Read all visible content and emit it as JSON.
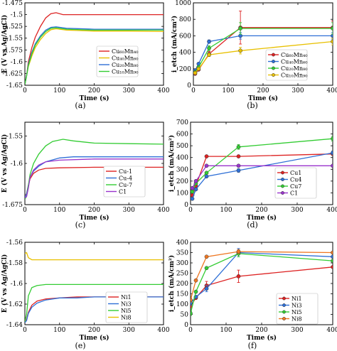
{
  "captions": [
    "(a)",
    "(b)",
    "(c)",
    "(d)",
    "(e)",
    "(f)"
  ],
  "chart_data": [
    {
      "id": "a",
      "type": "line",
      "xlabel": "Time (s)",
      "ylabel": "E (V vs Ag/AgCl)",
      "xlim": [
        0,
        400
      ],
      "ylim": [
        -1.65,
        -1.475
      ],
      "xticks": [
        0,
        100,
        200,
        300,
        400
      ],
      "yticks": [
        -1.65,
        -1.625,
        -1.6,
        -1.575,
        -1.55,
        -1.525,
        -1.5,
        -1.475
      ],
      "ytick_labels": [
        "-1.65",
        "-1.625",
        "-1.6",
        "-1.575",
        "-1.55",
        "-1.525",
        "-1.5",
        "-1.475"
      ],
      "legend_position": "lower-right",
      "series": [
        {
          "name": "Cu₆₀Mn₄₀",
          "color": "#dd2222",
          "x": [
            0,
            5,
            10,
            20,
            30,
            45,
            60,
            75,
            90,
            110,
            200,
            300,
            400
          ],
          "y": [
            -1.648,
            -1.63,
            -1.6,
            -1.57,
            -1.548,
            -1.525,
            -1.507,
            -1.498,
            -1.496,
            -1.5,
            -1.5,
            -1.5,
            -1.5
          ]
        },
        {
          "name": "Cu₄₀Mn₆₀",
          "color": "#e8c000",
          "x": [
            0,
            5,
            10,
            20,
            30,
            45,
            60,
            75,
            90,
            120,
            200,
            300,
            400
          ],
          "y": [
            -1.648,
            -1.63,
            -1.61,
            -1.588,
            -1.57,
            -1.553,
            -1.54,
            -1.532,
            -1.53,
            -1.533,
            -1.535,
            -1.535,
            -1.536
          ]
        },
        {
          "name": "Cu₂₀Mn₈₀",
          "color": "#2e6fd6",
          "x": [
            0,
            5,
            10,
            20,
            30,
            45,
            60,
            75,
            90,
            120,
            200,
            300,
            400
          ],
          "y": [
            -1.648,
            -1.63,
            -1.605,
            -1.58,
            -1.562,
            -1.545,
            -1.533,
            -1.527,
            -1.526,
            -1.529,
            -1.531,
            -1.531,
            -1.531
          ]
        },
        {
          "name": "Cu₁₀Mn₉₀",
          "color": "#33cc33",
          "x": [
            0,
            5,
            10,
            20,
            30,
            45,
            60,
            75,
            90,
            120,
            200,
            300,
            400
          ],
          "y": [
            -1.648,
            -1.63,
            -1.608,
            -1.583,
            -1.565,
            -1.548,
            -1.536,
            -1.529,
            -1.528,
            -1.531,
            -1.533,
            -1.533,
            -1.533
          ]
        }
      ]
    },
    {
      "id": "b",
      "type": "line",
      "xlabel": "Time (s)",
      "ylabel": "i_etch (mA/cm²)",
      "xlim": [
        0,
        400
      ],
      "ylim": [
        0,
        1000
      ],
      "xticks": [
        0,
        100,
        200,
        300,
        400
      ],
      "yticks": [
        0,
        200,
        400,
        600,
        800,
        1000
      ],
      "legend_position": "lower-right",
      "series": [
        {
          "name": "Cu₆₀Mn₄₀",
          "color": "#dd2222",
          "x": [
            5,
            15,
            45,
            135,
            400
          ],
          "y": [
            140,
            190,
            380,
            700,
            700
          ],
          "err": [
            0,
            0,
            30,
            200,
            80
          ]
        },
        {
          "name": "Cu₄₀Mn₆₀",
          "color": "#2e6fd6",
          "x": [
            5,
            15,
            45,
            135,
            400
          ],
          "y": [
            180,
            260,
            530,
            600,
            600
          ],
          "err": [
            0,
            0,
            20,
            40,
            40
          ]
        },
        {
          "name": "Cu₂₀Mn₈₀",
          "color": "#33cc33",
          "x": [
            5,
            15,
            45,
            135,
            400
          ],
          "y": [
            160,
            220,
            450,
            690,
            690
          ],
          "err": [
            0,
            0,
            30,
            70,
            70
          ]
        },
        {
          "name": "Cu₁₀Mn₉₀",
          "color": "#e8c000",
          "x": [
            5,
            15,
            45,
            135,
            400
          ],
          "y": [
            150,
            200,
            370,
            420,
            530
          ],
          "err": [
            0,
            0,
            20,
            40,
            40
          ]
        }
      ]
    },
    {
      "id": "c",
      "type": "line",
      "xlabel": "Time (s)",
      "ylabel": "E (V vs Ag/AgCl)",
      "xlim": [
        0,
        400
      ],
      "ylim": [
        -1.675,
        -1.525
      ],
      "xticks": [
        0,
        100,
        200,
        300,
        400
      ],
      "yticks": [
        -1.675,
        -1.6,
        -1.55
      ],
      "ytick_labels": [
        "-1.675",
        "-1.6",
        "-1.55"
      ],
      "legend_position": "lower-right",
      "series": [
        {
          "name": "Cu-1",
          "color": "#dd2222",
          "x": [
            0,
            5,
            10,
            15,
            25,
            40,
            60,
            100,
            200,
            300,
            400
          ],
          "y": [
            -1.66,
            -1.655,
            -1.64,
            -1.628,
            -1.618,
            -1.612,
            -1.609,
            -1.608,
            -1.607,
            -1.607,
            -1.607
          ]
        },
        {
          "name": "Cu-4",
          "color": "#2e6fd6",
          "x": [
            0,
            5,
            10,
            15,
            25,
            40,
            60,
            100,
            140,
            200,
            300,
            400
          ],
          "y": [
            -1.662,
            -1.655,
            -1.64,
            -1.625,
            -1.614,
            -1.605,
            -1.597,
            -1.59,
            -1.588,
            -1.588,
            -1.588,
            -1.588
          ]
        },
        {
          "name": "Cu-7",
          "color": "#33cc33",
          "x": [
            0,
            5,
            10,
            15,
            25,
            40,
            60,
            80,
            110,
            140,
            200,
            300,
            400
          ],
          "y": [
            -1.665,
            -1.66,
            -1.64,
            -1.62,
            -1.6,
            -1.583,
            -1.568,
            -1.56,
            -1.556,
            -1.559,
            -1.563,
            -1.564,
            -1.565
          ]
        },
        {
          "name": "C1",
          "color": "#9933cc",
          "x": [
            0,
            5,
            10,
            15,
            25,
            40,
            60,
            100,
            200,
            300,
            400
          ],
          "y": [
            -1.663,
            -1.66,
            -1.645,
            -1.625,
            -1.612,
            -1.603,
            -1.597,
            -1.594,
            -1.592,
            -1.592,
            -1.592
          ]
        }
      ]
    },
    {
      "id": "d",
      "type": "line",
      "xlabel": "Time (s)",
      "ylabel": "i_etch (mA/cm²)",
      "xlim": [
        0,
        400
      ],
      "ylim": [
        0,
        700
      ],
      "xticks": [
        0,
        100,
        200,
        300,
        400
      ],
      "yticks": [
        0,
        100,
        200,
        300,
        400,
        500,
        600,
        700
      ],
      "legend_position": "lower-right",
      "series": [
        {
          "name": "Cu1",
          "color": "#dd2222",
          "x": [
            5,
            15,
            45,
            135,
            400
          ],
          "y": [
            80,
            160,
            410,
            410,
            430
          ],
          "err": [
            0,
            0,
            0,
            10,
            10
          ]
        },
        {
          "name": "Cu4",
          "color": "#2e6fd6",
          "x": [
            5,
            15,
            45,
            135,
            400
          ],
          "y": [
            50,
            130,
            240,
            290,
            440
          ],
          "err": [
            0,
            0,
            0,
            15,
            15
          ]
        },
        {
          "name": "Cu7",
          "color": "#33cc33",
          "x": [
            5,
            15,
            45,
            135,
            400
          ],
          "y": [
            110,
            180,
            270,
            490,
            560
          ],
          "err": [
            0,
            0,
            0,
            20,
            20
          ]
        },
        {
          "name": "C1",
          "color": "#9933cc",
          "x": [
            5,
            15,
            45,
            135,
            400
          ],
          "y": [
            140,
            200,
            330,
            330,
            330
          ],
          "err": [
            0,
            0,
            0,
            10,
            10
          ]
        }
      ]
    },
    {
      "id": "e",
      "type": "line",
      "xlabel": "Time (s)",
      "ylabel": "E (V vs Ag/AgCl)",
      "xlim": [
        0,
        400
      ],
      "ylim": [
        -1.64,
        -1.56
      ],
      "xticks": [
        0,
        100,
        200,
        300,
        400
      ],
      "yticks": [
        -1.64,
        -1.62,
        -1.6,
        -1.58,
        -1.56
      ],
      "ytick_labels": [
        "-1.64",
        "-1.62",
        "-1.6",
        "-1.58",
        "-1.56"
      ],
      "legend_position": "lower-right",
      "series": [
        {
          "name": "Ni1",
          "color": "#dd2222",
          "x": [
            0,
            5,
            10,
            20,
            35,
            60,
            100,
            150,
            200,
            300,
            400
          ],
          "y": [
            -1.636,
            -1.635,
            -1.628,
            -1.621,
            -1.617,
            -1.615,
            -1.614,
            -1.613,
            -1.613,
            -1.613,
            -1.613
          ]
        },
        {
          "name": "Ni3",
          "color": "#2e6fd6",
          "x": [
            0,
            5,
            10,
            20,
            35,
            60,
            100,
            150,
            200,
            300,
            400
          ],
          "y": [
            -1.638,
            -1.636,
            -1.629,
            -1.623,
            -1.619,
            -1.616,
            -1.614,
            -1.614,
            -1.613,
            -1.613,
            -1.613
          ]
        },
        {
          "name": "Ni5",
          "color": "#33cc33",
          "x": [
            0,
            5,
            10,
            20,
            35,
            60,
            100,
            200,
            300,
            400
          ],
          "y": [
            -1.637,
            -1.63,
            -1.612,
            -1.604,
            -1.602,
            -1.601,
            -1.601,
            -1.601,
            -1.601,
            -1.601
          ]
        },
        {
          "name": "Ni8",
          "color": "#e8c000",
          "x": [
            0,
            5,
            10,
            20,
            40,
            100,
            200,
            300,
            400
          ],
          "y": [
            -1.571,
            -1.57,
            -1.575,
            -1.577,
            -1.577,
            -1.577,
            -1.577,
            -1.577,
            -1.577
          ]
        }
      ]
    },
    {
      "id": "f",
      "type": "line",
      "xlabel": "Time (s)",
      "ylabel": "i_etch (mA/cm²)",
      "xlim": [
        0,
        400
      ],
      "ylim": [
        0,
        400
      ],
      "xticks": [
        0,
        100,
        200,
        300,
        400
      ],
      "yticks": [
        0,
        50,
        100,
        150,
        200,
        250,
        300,
        350,
        400
      ],
      "legend_position": "lower-right",
      "series": [
        {
          "name": "Ni1",
          "color": "#dd2222",
          "x": [
            0,
            15,
            45,
            135,
            400
          ],
          "y": [
            90,
            130,
            190,
            235,
            280
          ],
          "err": [
            10,
            0,
            20,
            30,
            0
          ]
        },
        {
          "name": "Ni3",
          "color": "#2e6fd6",
          "x": [
            0,
            15,
            45,
            135,
            400
          ],
          "y": [
            105,
            135,
            175,
            350,
            330
          ],
          "err": [
            10,
            0,
            15,
            20,
            0
          ]
        },
        {
          "name": "Ni5",
          "color": "#33cc33",
          "x": [
            0,
            15,
            45,
            135,
            400
          ],
          "y": [
            55,
            160,
            275,
            345,
            310
          ],
          "err": [
            10,
            0,
            0,
            15,
            0
          ]
        },
        {
          "name": "Ni8",
          "color": "#ee7722",
          "x": [
            0,
            15,
            45,
            135,
            400
          ],
          "y": [
            120,
            215,
            330,
            355,
            350
          ],
          "err": [
            10,
            0,
            0,
            10,
            0
          ]
        }
      ]
    }
  ]
}
